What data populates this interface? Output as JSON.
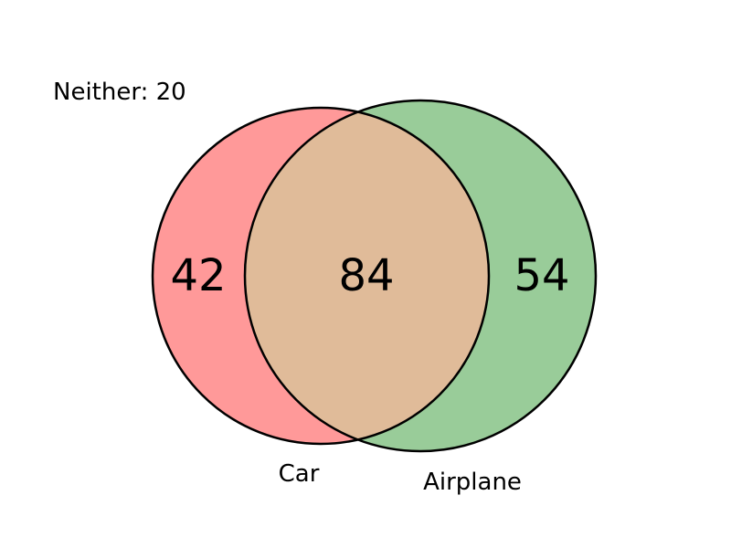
{
  "venn": {
    "outside_text": "Neither: 20",
    "sets": [
      {
        "name": "Car",
        "only_value": "42",
        "color": "#ff9999"
      },
      {
        "name": "Airplane",
        "only_value": "54",
        "color": "#99cc99"
      }
    ],
    "intersection": {
      "value": "84",
      "color": "#e0bb99"
    },
    "outline_color": "#000000"
  }
}
